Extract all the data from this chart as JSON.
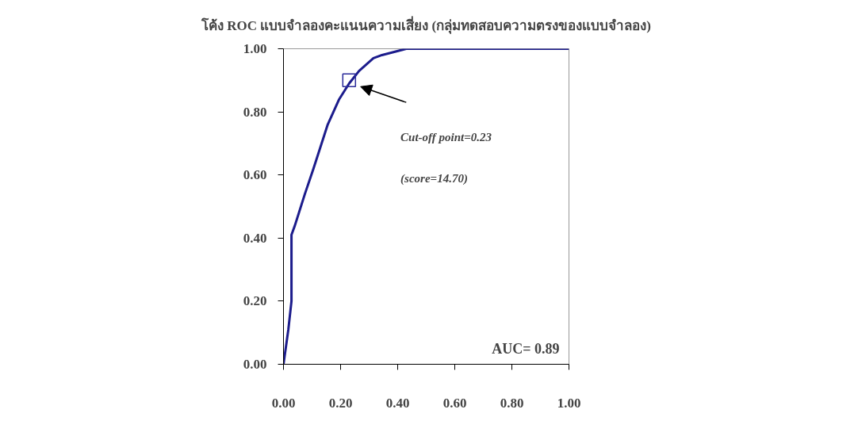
{
  "chart_data": {
    "type": "line",
    "title": "โค้ง ROC แบบจำลองคะแนนความเสี่ยง (กลุ่มทดสอบความตรงของแบบจำลอง)",
    "xlim": [
      0,
      1
    ],
    "ylim": [
      0,
      1
    ],
    "xticks": [
      {
        "value": 0,
        "label": "0.00"
      },
      {
        "value": 0.2,
        "label": "0.20"
      },
      {
        "value": 0.4,
        "label": "0.40"
      },
      {
        "value": 0.6,
        "label": "0.60"
      },
      {
        "value": 0.8,
        "label": "0.80"
      },
      {
        "value": 1,
        "label": "1.00"
      }
    ],
    "yticks": [
      {
        "value": 0,
        "label": "0.00"
      },
      {
        "value": 0.2,
        "label": "0.20"
      },
      {
        "value": 0.4,
        "label": "0.40"
      },
      {
        "value": 0.6,
        "label": "0.60"
      },
      {
        "value": 0.8,
        "label": "0.80"
      },
      {
        "value": 1,
        "label": "1.00"
      }
    ],
    "grid": false,
    "series": [
      {
        "color": "#1c1c8c",
        "marker": "none",
        "x": [
          0,
          0.017,
          0.028,
          0.028,
          0.04,
          0.075,
          0.105,
          0.155,
          0.195,
          0.23,
          0.265,
          0.315,
          0.345,
          0.43,
          1.0
        ],
        "values": [
          0,
          0.11,
          0.2,
          0.41,
          0.44,
          0.54,
          0.62,
          0.76,
          0.84,
          0.89,
          0.93,
          0.97,
          0.98,
          1.0,
          1.0
        ]
      },
      {
        "type": "scatter",
        "color": "#2a2a9a",
        "marker": "square",
        "x": [
          0.23
        ],
        "values": [
          0.9
        ]
      }
    ],
    "annotations": [
      "Cut-off point=0.23",
      "(score=14.70)",
      "AUC= 0.89"
    ]
  }
}
